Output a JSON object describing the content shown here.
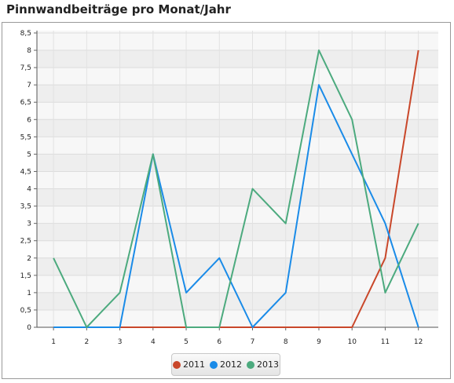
{
  "title": "Pinnwandbeiträge pro Monat/Jahr",
  "chart_data": {
    "type": "line",
    "title": "Pinnwandbeiträge pro Monat/Jahr",
    "x": [
      1,
      2,
      3,
      4,
      5,
      6,
      7,
      8,
      9,
      10,
      11,
      12
    ],
    "x_tick_labels": [
      "1",
      "2",
      "3",
      "4",
      "5",
      "6",
      "7",
      "8",
      "9",
      "10",
      "11",
      "12"
    ],
    "ylim": [
      0,
      8.5
    ],
    "y_ticks": [
      0,
      0.5,
      1,
      1.5,
      2,
      2.5,
      3,
      3.5,
      4,
      4.5,
      5,
      5.5,
      6,
      6.5,
      7,
      7.5,
      8,
      8.5
    ],
    "y_tick_labels": [
      "0",
      "0,5",
      "1",
      "1,5",
      "2",
      "2,5",
      "3",
      "3,5",
      "4",
      "4,5",
      "5",
      "5,5",
      "6",
      "6,5",
      "7",
      "7,5",
      "8",
      "8,5"
    ],
    "grid": true,
    "legend_position": "bottom",
    "series": [
      {
        "name": "2011",
        "color": "#c9472a",
        "values": [
          0,
          0,
          0,
          0,
          0,
          0,
          0,
          0,
          0,
          0,
          2,
          8
        ]
      },
      {
        "name": "2012",
        "color": "#1a8be8",
        "values": [
          0,
          0,
          0,
          5,
          1,
          2,
          0,
          1,
          7,
          5,
          3,
          0
        ]
      },
      {
        "name": "2013",
        "color": "#4caa7e",
        "values": [
          2,
          0,
          1,
          5,
          0,
          0,
          4,
          3,
          8,
          6,
          1,
          3
        ]
      }
    ]
  }
}
